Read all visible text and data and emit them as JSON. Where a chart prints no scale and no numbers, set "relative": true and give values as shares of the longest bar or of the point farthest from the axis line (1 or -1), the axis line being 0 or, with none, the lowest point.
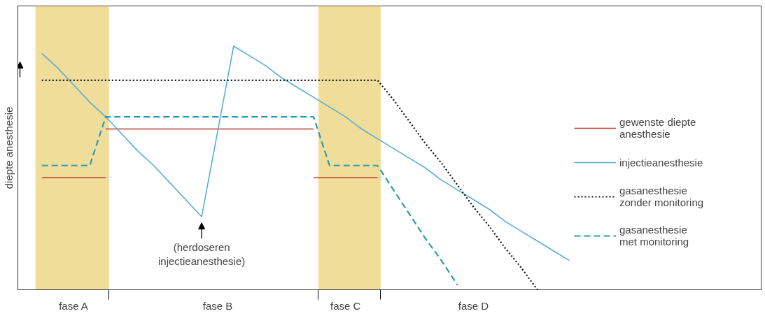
{
  "chart_data": {
    "type": "line",
    "relative": true,
    "ylabel": "diepte anesthesie",
    "grid": false,
    "legend": "right",
    "categories": [
      null,
      null,
      null,
      "fase A",
      null,
      null,
      null,
      null,
      null,
      null,
      null,
      null,
      "fase B",
      null,
      null,
      null,
      null,
      null,
      null,
      null,
      "fase C",
      null,
      null,
      null,
      null,
      null,
      null,
      null,
      "fase D",
      null,
      null,
      null,
      null,
      null,
      null,
      null,
      null,
      null,
      null,
      null,
      null
    ],
    "series": [
      {
        "name": "gewenste diepte\nanesthesie",
        "color": "#c0392b",
        "line_style": "solid",
        "values": [
          null,
          0.46,
          0.46,
          0.46,
          0.46,
          0.46,
          null,
          null,
          null,
          null,
          null,
          null,
          null,
          null,
          null,
          null,
          null,
          null,
          null,
          null,
          null,
          null,
          null,
          null,
          null,
          null,
          null,
          null,
          null,
          null,
          null,
          null,
          null,
          null,
          null,
          null,
          null,
          null,
          null,
          null,
          null
        ]
      },
      {
        "color": "#c0392b",
        "line_style": "solid",
        "values": [
          null,
          null,
          null,
          null,
          null,
          0.66,
          0.66,
          0.66,
          0.66,
          0.66,
          0.66,
          0.66,
          0.66,
          0.66,
          0.66,
          0.66,
          0.66,
          0.66,
          0.66,
          null,
          null,
          null,
          null,
          null,
          null,
          null,
          null,
          null,
          null,
          null,
          null,
          null,
          null,
          null,
          null,
          null,
          null,
          null,
          null,
          null,
          null
        ]
      },
      {
        "color": "#c0392b",
        "line_style": "solid",
        "values": [
          null,
          null,
          null,
          null,
          null,
          null,
          null,
          null,
          null,
          null,
          null,
          null,
          null,
          null,
          null,
          null,
          null,
          null,
          0.46,
          0.46,
          0.46,
          0.46,
          0.46,
          null,
          null,
          null,
          null,
          null,
          null,
          null,
          null,
          null,
          null,
          null,
          null,
          null,
          null,
          null,
          null,
          null,
          null
        ]
      },
      {
        "name": "injectieanesthesie",
        "color": "#5aaed0",
        "line_style": "solid",
        "values": [
          null,
          0.97,
          0.91,
          0.84,
          0.77,
          0.71,
          0.64,
          0.57,
          0.51,
          0.44,
          0.37,
          0.3,
          0.65,
          1.0,
          0.96,
          0.92,
          0.87,
          0.83,
          0.79,
          0.75,
          0.71,
          0.66,
          0.62,
          0.58,
          0.54,
          0.5,
          0.45,
          0.41,
          0.37,
          0.33,
          0.28,
          0.24,
          0.2,
          0.16,
          0.12,
          null,
          null,
          null,
          null,
          null,
          null
        ]
      },
      {
        "name": "gasanesthesie\nzonder monitoring",
        "color": "#111111",
        "line_style": "dotted",
        "values": [
          null,
          0.86,
          0.86,
          0.86,
          0.86,
          0.86,
          0.86,
          0.86,
          0.86,
          0.86,
          0.86,
          0.86,
          0.86,
          0.86,
          0.86,
          0.86,
          0.86,
          0.86,
          0.86,
          0.86,
          0.86,
          0.86,
          0.86,
          0.78,
          0.69,
          0.6,
          0.52,
          0.43,
          0.34,
          0.26,
          0.17,
          0.09,
          0.0,
          null,
          null,
          null,
          null,
          null,
          null,
          null,
          null
        ]
      },
      {
        "name": "gasanesthesie\nmet monitoring",
        "color": "#2a9bb5",
        "line_style": "dashed",
        "values": [
          null,
          0.51,
          0.51,
          0.51,
          0.51,
          0.71,
          0.71,
          0.71,
          0.71,
          0.71,
          0.71,
          0.71,
          0.71,
          0.71,
          0.71,
          0.71,
          0.71,
          0.71,
          0.71,
          0.51,
          0.51,
          0.51,
          0.51,
          0.41,
          0.31,
          0.21,
          0.12,
          0.02,
          null,
          null,
          null,
          null,
          null,
          null,
          null,
          null,
          null,
          null,
          null,
          null,
          null
        ]
      }
    ],
    "annotations": [
      {
        "text": "(herdoseren\ninjectieanesthesie)",
        "y": 0.3
      }
    ]
  }
}
